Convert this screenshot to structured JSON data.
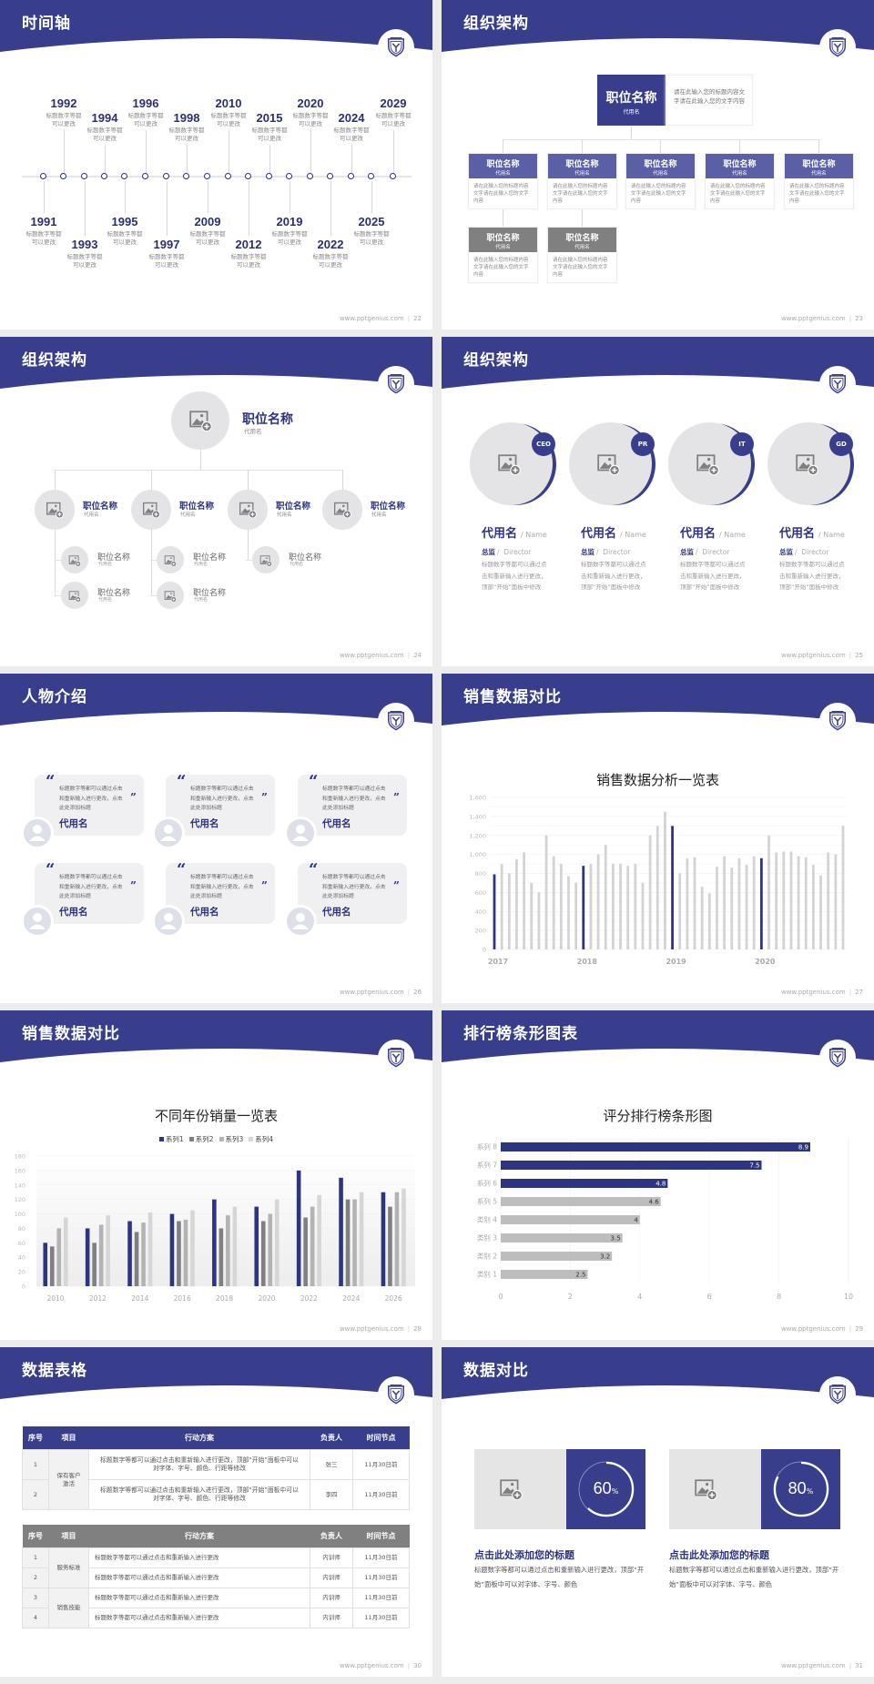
{
  "colors": {
    "primary": "#383d8c",
    "secondary": "#5b5fa6",
    "title_text": "#2d3280",
    "gray_box": "#808080",
    "placeholder": "#e4e3e5",
    "page_bg": "#ececec"
  },
  "footer_site": "www.pptgenius.com",
  "footer_sep": "|",
  "slides": [
    {
      "title": "时间轴",
      "page": "22",
      "events": [
        {
          "year": "1991",
          "desc": [
            "标题数字等都",
            "可以更改"
          ]
        },
        {
          "year": "1992",
          "desc": [
            "标题数字等都",
            "可以更改"
          ]
        },
        {
          "year": "1993",
          "desc": [
            "标题数字等都",
            "可以更改"
          ]
        },
        {
          "year": "1994",
          "desc": [
            "标题数字等都",
            "可以更改"
          ]
        },
        {
          "year": "1995",
          "desc": [
            "标题数字等都",
            "可以更改"
          ]
        },
        {
          "year": "1996",
          "desc": [
            "标题数字等都",
            "可以更改"
          ]
        },
        {
          "year": "1997",
          "desc": [
            "标题数字等都",
            "可以更改"
          ]
        },
        {
          "year": "1998",
          "desc": [
            "标题数字等都",
            "可以更改"
          ]
        },
        {
          "year": "2009",
          "desc": [
            "标题数字等都",
            "可以更改"
          ]
        },
        {
          "year": "2010",
          "desc": [
            "标题数字等都",
            "可以更改"
          ]
        },
        {
          "year": "2012",
          "desc": [
            "标题数字等都",
            "可以更改"
          ]
        },
        {
          "year": "2015",
          "desc": [
            "标题数字等都",
            "可以更改"
          ]
        },
        {
          "year": "2019",
          "desc": [
            "标题数字等都",
            "可以更改"
          ]
        },
        {
          "year": "2020",
          "desc": [
            "标题数字等都",
            "可以更改"
          ]
        },
        {
          "year": "2022",
          "desc": [
            "标题数字等都",
            "可以更改"
          ]
        },
        {
          "year": "2024",
          "desc": [
            "标题数字等都",
            "可以更改"
          ]
        },
        {
          "year": "2025",
          "desc": [
            "标题数字等都",
            "可以更改"
          ]
        },
        {
          "year": "2029",
          "desc": [
            "标题数字等都",
            "可以更改"
          ]
        }
      ]
    },
    {
      "title": "组织架构",
      "page": "23",
      "top": {
        "title": "职位名称",
        "sub": "代用名",
        "desc": "请在此输入您的标题内容文字请在此输入您的文字内容"
      },
      "level2": [
        {
          "title": "职位名称",
          "sub": "代用名",
          "desc": "请在此输入您的标题内容文字请在此输入您的文字内容"
        },
        {
          "title": "职位名称",
          "sub": "代用名",
          "desc": "请在此输入您的标题内容文字请在此输入您的文字内容"
        },
        {
          "title": "职位名称",
          "sub": "代用名",
          "desc": "请在此输入您的标题内容文字请在此输入您的文字内容"
        },
        {
          "title": "职位名称",
          "sub": "代用名",
          "desc": "请在此输入您的标题内容文字请在此输入您的文字内容"
        },
        {
          "title": "职位名称",
          "sub": "代用名",
          "desc": "请在此输入您的标题内容文字请在此输入您的文字内容"
        }
      ],
      "level3": [
        {
          "title": "职位名称",
          "sub": "代用名",
          "desc": "请在此输入您的标题内容文字请在此输入您的文字内容"
        },
        {
          "title": "职位名称",
          "sub": "代用名",
          "desc": "请在此输入您的标题内容文字请在此输入您的文字内容"
        }
      ]
    },
    {
      "title": "组织架构",
      "page": "24",
      "top": {
        "title": "职位名称",
        "sub": "代用名"
      },
      "level2": [
        {
          "title": "职位名称",
          "sub": "代用名"
        },
        {
          "title": "职位名称",
          "sub": "代用名"
        },
        {
          "title": "职位名称",
          "sub": "代用名"
        },
        {
          "title": "职位名称",
          "sub": "代用名"
        }
      ],
      "level3": [
        {
          "title": "职位名称",
          "sub": "代用名"
        },
        {
          "title": "职位名称",
          "sub": "代用名"
        },
        {
          "title": "职位名称",
          "sub": "代用名"
        },
        {
          "title": "职位名称",
          "sub": "代用名"
        },
        {
          "title": "职位名称",
          "sub": "代用名"
        }
      ]
    },
    {
      "title": "组织架构",
      "page": "25",
      "members": [
        {
          "badge": "CEO",
          "name": "代用名",
          "name_en": "/ Name",
          "role": "总监",
          "role_en": "/  Director",
          "desc": "标题数字等都可以通过点击和重新输入进行更改，顶部“开始”面板中修改"
        },
        {
          "badge": "PR",
          "name": "代用名",
          "name_en": "/ Name",
          "role": "总监",
          "role_en": "/  Director",
          "desc": "标题数字等都可以通过点击和重新输入进行更改，顶部“开始”面板中修改"
        },
        {
          "badge": "IT",
          "name": "代用名",
          "name_en": "/ Name",
          "role": "总监",
          "role_en": "/  Director",
          "desc": "标题数字等都可以通过点击和重新输入进行更改，顶部“开始”面板中修改"
        },
        {
          "badge": "GD",
          "name": "代用名",
          "name_en": "/ Name",
          "role": "总监",
          "role_en": "/  Director",
          "desc": "标题数字等都可以通过点击和重新输入进行更改，顶部“开始”面板中修改"
        }
      ]
    },
    {
      "title": "人物介绍",
      "page": "26",
      "cards": [
        {
          "quote": "标题数字等都可以通过点击和重新输入进行更改，点击此处添加标题",
          "name": "代用名"
        },
        {
          "quote": "标题数字等都可以通过点击和重新输入进行更改，点击此处添加标题",
          "name": "代用名"
        },
        {
          "quote": "标题数字等都可以通过点击和重新输入进行更改，点击此处添加标题",
          "name": "代用名"
        },
        {
          "quote": "标题数字等都可以通过点击和重新输入进行更改，点击此处添加标题",
          "name": "代用名"
        },
        {
          "quote": "标题数字等都可以通过点击和重新输入进行更改，点击此处添加标题",
          "name": "代用名"
        },
        {
          "quote": "标题数字等都可以通过点击和重新输入进行更改，点击此处添加标题",
          "name": "代用名"
        }
      ]
    },
    {
      "title": "销售数据对比",
      "page": "27"
    },
    {
      "title": "销售数据对比",
      "page": "28"
    },
    {
      "title": "排行榜条形图表",
      "page": "29"
    },
    {
      "title": "数据表格",
      "page": "30",
      "tables": [
        {
          "headers": [
            "序号",
            "项目",
            "行动方案",
            "负责人",
            "时间节点"
          ],
          "header_color": "#383d8c",
          "groups": [
            {
              "item": "保有客户激活",
              "rows": [
                {
                  "no": "1",
                  "plan": "标题数字等都可以通过点击和重新输入进行更改，顶部“开始”面板中可以对字体、字号、颜色、行距等修改",
                  "owner": "张三",
                  "due": "11月30日前"
                },
                {
                  "no": "2",
                  "plan": "标题数字等都可以通过点击和重新输入进行更改，顶部“开始”面板中可以对字体、字号、颜色、行距等修改",
                  "owner": "李四",
                  "due": "11月30日前"
                }
              ]
            }
          ]
        },
        {
          "headers": [
            "序号",
            "项目",
            "行动方案",
            "负责人",
            "时间节点"
          ],
          "header_color": "#808080",
          "groups": [
            {
              "item": "服务标准",
              "rows": [
                {
                  "no": "1",
                  "plan": "标题数字等都可以通过点击和重新输入进行更改",
                  "owner": "内训师",
                  "due": "11月30日前"
                },
                {
                  "no": "2",
                  "plan": "标题数字等都可以通过点击和重新输入进行更改",
                  "owner": "内训师",
                  "due": "11月30日前"
                }
              ]
            },
            {
              "item": "销售技能",
              "rows": [
                {
                  "no": "3",
                  "plan": "标题数字等都可以通过点击和重新输入进行更改",
                  "owner": "内训师",
                  "due": "11月30日前"
                },
                {
                  "no": "4",
                  "plan": "标题数字等都可以通过点击和重新输入进行更改",
                  "owner": "内训师",
                  "due": "11月30日前"
                }
              ]
            }
          ]
        }
      ]
    },
    {
      "title": "数据对比",
      "page": "31",
      "items": [
        {
          "value": 60,
          "label": "60",
          "unit": "%",
          "heading": "点击此处添加您的标题",
          "desc": "标题数字等都可以通过点击和重新输入进行更改，顶部“开始”面板中可以对字体、字号、颜色"
        },
        {
          "value": 80,
          "label": "80",
          "unit": "%",
          "heading": "点击此处添加您的标题",
          "desc": "标题数字等都可以通过点击和重新输入进行更改，顶部“开始”面板中可以对字体、字号、颜色"
        }
      ]
    }
  ],
  "chart_data": [
    {
      "type": "bar",
      "title": "销售数据分析一览表",
      "x_tick_labels": [
        "2017",
        "2018",
        "2019",
        "2020"
      ],
      "values": [
        790,
        900,
        800,
        950,
        1020,
        700,
        600,
        1200,
        980,
        900,
        770,
        700,
        880,
        900,
        1000,
        1100,
        900,
        900,
        880,
        900,
        700,
        1200,
        1300,
        1450,
        1300,
        800,
        960,
        970,
        660,
        590,
        870,
        980,
        860,
        960,
        890,
        980,
        960,
        1200,
        1020,
        1030,
        1030,
        980,
        970,
        890,
        780,
        1020,
        1000,
        1300
      ],
      "ylim": [
        0,
        1600
      ],
      "yticks": [
        0,
        200,
        400,
        600,
        800,
        1000,
        1200,
        1400,
        1600
      ],
      "ytick_labels": [
        "0",
        "200",
        "400",
        "600",
        "800",
        "1,000",
        "1,200",
        "1,400",
        "1,600"
      ],
      "bar_color": "#d3d3d3",
      "highlight_color": "#2e3580",
      "grid": true
    },
    {
      "type": "bar",
      "title": "不同年份销量一览表",
      "categories": [
        "2010",
        "2012",
        "2014",
        "2016",
        "2018",
        "2020",
        "2022",
        "2024",
        "2026"
      ],
      "series": [
        {
          "name": "系列1",
          "color": "#2e3580",
          "values": [
            60,
            80,
            90,
            100,
            120,
            110,
            160,
            150,
            130
          ]
        },
        {
          "name": "系列2",
          "color": "#808080",
          "values": [
            55,
            60,
            75,
            90,
            80,
            90,
            95,
            120,
            110
          ]
        },
        {
          "name": "系列3",
          "color": "#b3b3b3",
          "values": [
            80,
            85,
            88,
            92,
            98,
            100,
            110,
            120,
            130
          ]
        },
        {
          "name": "系列4",
          "color": "#d6d6d6",
          "values": [
            95,
            98,
            102,
            105,
            110,
            120,
            126,
            130,
            135
          ]
        }
      ],
      "ylim": [
        0,
        180
      ],
      "yticks": [
        0,
        20,
        40,
        60,
        80,
        100,
        120,
        140,
        160,
        180
      ],
      "legend": "top",
      "grid": true
    },
    {
      "type": "bar",
      "orientation": "horizontal",
      "title": "评分排行榜条形图",
      "categories": [
        "类别 1",
        "类别 2",
        "类别 3",
        "类别 4",
        "系列 5",
        "系列 6",
        "系列 7",
        "系列 8"
      ],
      "values": [
        2.5,
        3.2,
        3.5,
        4,
        4.6,
        4.8,
        7.5,
        8.9
      ],
      "value_labels": [
        "2.5",
        "3.2",
        "3.5",
        "4",
        "4.6",
        "4.8",
        "7.5",
        "8.9"
      ],
      "xlim": [
        0,
        10
      ],
      "xticks": [
        0,
        2,
        4,
        6,
        8,
        10
      ],
      "bar_color": "#bdbdbd",
      "highlight_color": "#2e3580",
      "grid": true
    }
  ]
}
